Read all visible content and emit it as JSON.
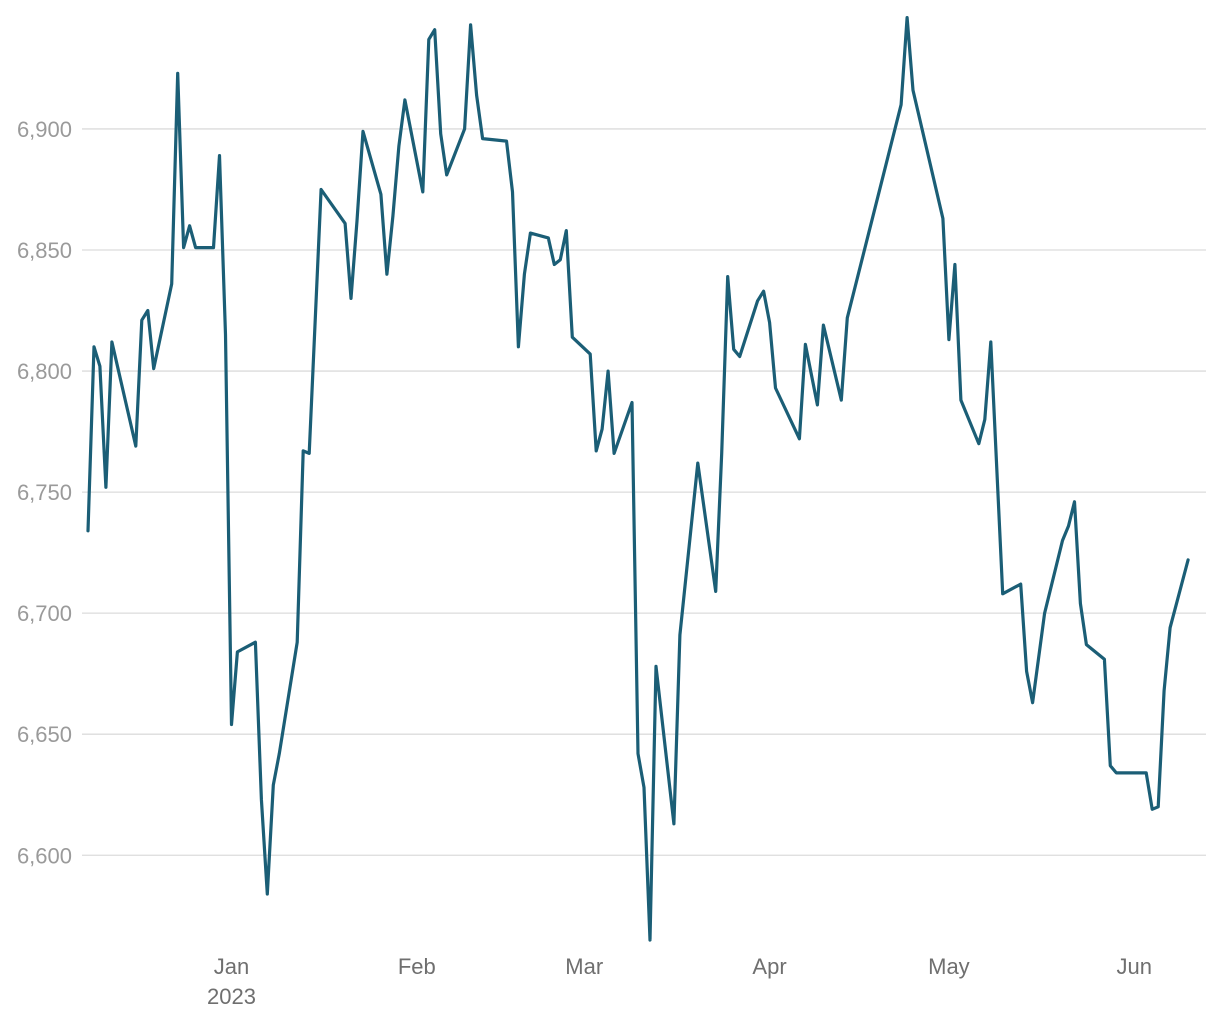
{
  "chart_data": {
    "type": "line",
    "title": "",
    "xlabel": "",
    "ylabel": "",
    "ylim": [
      6565,
      6945
    ],
    "yticks": [
      6600,
      6650,
      6700,
      6750,
      6800,
      6850,
      6900
    ],
    "ytick_labels": [
      "6,600",
      "6,650",
      "6,700",
      "6,750",
      "6,800",
      "6,850",
      "6,900"
    ],
    "xlim": [
      "2022-12-07",
      "2023-06-13"
    ],
    "xticks": [
      {
        "date": "2023-01-01",
        "label": "Jan",
        "sublabel": "2023"
      },
      {
        "date": "2023-02-01",
        "label": "Feb",
        "sublabel": ""
      },
      {
        "date": "2023-03-01",
        "label": "Mar",
        "sublabel": ""
      },
      {
        "date": "2023-04-01",
        "label": "Apr",
        "sublabel": ""
      },
      {
        "date": "2023-05-01",
        "label": "May",
        "sublabel": ""
      },
      {
        "date": "2023-06-01",
        "label": "Jun",
        "sublabel": ""
      }
    ],
    "grid": true,
    "legend": "none",
    "series": [
      {
        "color": "#1b5e76",
        "points": [
          [
            "2022-12-08",
            6734
          ],
          [
            "2022-12-09",
            6810
          ],
          [
            "2022-12-10",
            6802
          ],
          [
            "2022-12-11",
            6752
          ],
          [
            "2022-12-12",
            6812
          ],
          [
            "2022-12-16",
            6769
          ],
          [
            "2022-12-17",
            6821
          ],
          [
            "2022-12-18",
            6825
          ],
          [
            "2022-12-19",
            6801
          ],
          [
            "2022-12-22",
            6836
          ],
          [
            "2022-12-23",
            6923
          ],
          [
            "2022-12-24",
            6851
          ],
          [
            "2022-12-25",
            6860
          ],
          [
            "2022-12-26",
            6851
          ],
          [
            "2022-12-29",
            6851
          ],
          [
            "2022-12-30",
            6889
          ],
          [
            "2022-12-31",
            6815
          ],
          [
            "2023-01-01",
            6654
          ],
          [
            "2023-01-02",
            6684
          ],
          [
            "2023-01-05",
            6688
          ],
          [
            "2023-01-06",
            6623
          ],
          [
            "2023-01-07",
            6584
          ],
          [
            "2023-01-08",
            6629
          ],
          [
            "2023-01-09",
            6642
          ],
          [
            "2023-01-12",
            6688
          ],
          [
            "2023-01-13",
            6767
          ],
          [
            "2023-01-14",
            6766
          ],
          [
            "2023-01-16",
            6875
          ],
          [
            "2023-01-20",
            6861
          ],
          [
            "2023-01-21",
            6830
          ],
          [
            "2023-01-22",
            6862
          ],
          [
            "2023-01-23",
            6899
          ],
          [
            "2023-01-26",
            6873
          ],
          [
            "2023-01-27",
            6840
          ],
          [
            "2023-01-28",
            6864
          ],
          [
            "2023-01-29",
            6893
          ],
          [
            "2023-01-30",
            6912
          ],
          [
            "2023-02-02",
            6874
          ],
          [
            "2023-02-03",
            6937
          ],
          [
            "2023-02-04",
            6941
          ],
          [
            "2023-02-05",
            6898
          ],
          [
            "2023-02-06",
            6881
          ],
          [
            "2023-02-09",
            6900
          ],
          [
            "2023-02-10",
            6943
          ],
          [
            "2023-02-11",
            6914
          ],
          [
            "2023-02-12",
            6896
          ],
          [
            "2023-02-16",
            6895
          ],
          [
            "2023-02-17",
            6874
          ],
          [
            "2023-02-18",
            6810
          ],
          [
            "2023-02-19",
            6840
          ],
          [
            "2023-02-20",
            6857
          ],
          [
            "2023-02-23",
            6855
          ],
          [
            "2023-02-24",
            6844
          ],
          [
            "2023-02-25",
            6846
          ],
          [
            "2023-02-26",
            6858
          ],
          [
            "2023-02-27",
            6814
          ],
          [
            "2023-03-02",
            6807
          ],
          [
            "2023-03-03",
            6767
          ],
          [
            "2023-03-04",
            6776
          ],
          [
            "2023-03-05",
            6800
          ],
          [
            "2023-03-06",
            6766
          ],
          [
            "2023-03-09",
            6787
          ],
          [
            "2023-03-10",
            6642
          ],
          [
            "2023-03-11",
            6628
          ],
          [
            "2023-03-12",
            6565
          ],
          [
            "2023-03-13",
            6678
          ],
          [
            "2023-03-16",
            6613
          ],
          [
            "2023-03-17",
            6691
          ],
          [
            "2023-03-20",
            6762
          ],
          [
            "2023-03-23",
            6709
          ],
          [
            "2023-03-24",
            6766
          ],
          [
            "2023-03-25",
            6839
          ],
          [
            "2023-03-26",
            6809
          ],
          [
            "2023-03-27",
            6806
          ],
          [
            "2023-03-30",
            6829
          ],
          [
            "2023-03-31",
            6833
          ],
          [
            "2023-04-01",
            6820
          ],
          [
            "2023-04-02",
            6793
          ],
          [
            "2023-04-06",
            6772
          ],
          [
            "2023-04-07",
            6811
          ],
          [
            "2023-04-09",
            6786
          ],
          [
            "2023-04-10",
            6819
          ],
          [
            "2023-04-13",
            6788
          ],
          [
            "2023-04-14",
            6822
          ],
          [
            "2023-04-23",
            6910
          ],
          [
            "2023-04-24",
            6946
          ],
          [
            "2023-04-25",
            6916
          ],
          [
            "2023-04-30",
            6863
          ],
          [
            "2023-05-01",
            6813
          ],
          [
            "2023-05-02",
            6844
          ],
          [
            "2023-05-03",
            6788
          ],
          [
            "2023-05-06",
            6770
          ],
          [
            "2023-05-07",
            6780
          ],
          [
            "2023-05-08",
            6812
          ],
          [
            "2023-05-10",
            6708
          ],
          [
            "2023-05-13",
            6712
          ],
          [
            "2023-05-14",
            6676
          ],
          [
            "2023-05-15",
            6663
          ],
          [
            "2023-05-17",
            6700
          ],
          [
            "2023-05-20",
            6730
          ],
          [
            "2023-05-21",
            6736
          ],
          [
            "2023-05-22",
            6746
          ],
          [
            "2023-05-23",
            6704
          ],
          [
            "2023-05-24",
            6687
          ],
          [
            "2023-05-27",
            6681
          ],
          [
            "2023-05-28",
            6637
          ],
          [
            "2023-05-29",
            6634
          ],
          [
            "2023-06-03",
            6634
          ],
          [
            "2023-06-04",
            6619
          ],
          [
            "2023-06-05",
            6620
          ],
          [
            "2023-06-06",
            6668
          ],
          [
            "2023-06-07",
            6694
          ],
          [
            "2023-06-10",
            6722
          ]
        ]
      }
    ]
  }
}
